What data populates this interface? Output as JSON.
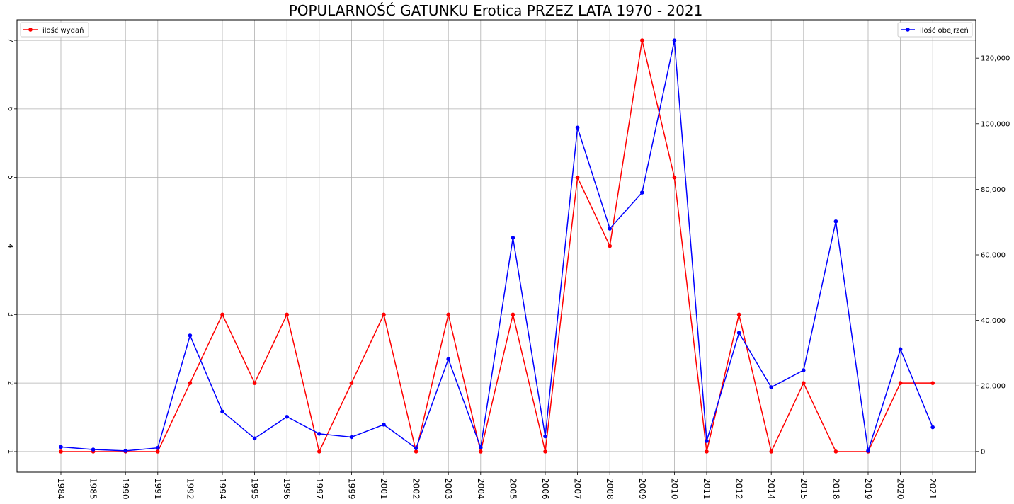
{
  "chart_data": {
    "type": "line",
    "title": "POPULARNOŚĆ GATUNKU Erotica PRZEZ LATA 1970 - 2021",
    "categories": [
      "1984",
      "1985",
      "1990",
      "1991",
      "1992",
      "1994",
      "1995",
      "1996",
      "1997",
      "1999",
      "2001",
      "2002",
      "2003",
      "2004",
      "2005",
      "2006",
      "2007",
      "2008",
      "2009",
      "2010",
      "2011",
      "2012",
      "2014",
      "2015",
      "2018",
      "2019",
      "2020",
      "2021"
    ],
    "grid": true,
    "series": [
      {
        "name": "ilość wydań",
        "axis": "left",
        "color": "#ff0000",
        "values": [
          1,
          1,
          1,
          1,
          2,
          3,
          2,
          3,
          1,
          2,
          3,
          1,
          3,
          1,
          3,
          1,
          5,
          4,
          7,
          5,
          1,
          3,
          1,
          2,
          1,
          1,
          2,
          2
        ]
      },
      {
        "name": "ilość obejrzeń",
        "axis": "right",
        "color": "#0000ff",
        "values": [
          1400,
          600,
          200,
          1100,
          35400,
          12200,
          4000,
          10600,
          5400,
          4400,
          8200,
          1000,
          28200,
          1200,
          65200,
          4600,
          98800,
          68000,
          79000,
          125400,
          3200,
          36200,
          19600,
          24800,
          70200,
          200,
          31200,
          7400
        ]
      }
    ],
    "y_left": {
      "ylim": [
        0.7,
        7.3
      ],
      "ticks": [
        1,
        2,
        3,
        4,
        5,
        6,
        7
      ],
      "tick_labels": [
        "1",
        "2",
        "3",
        "4",
        "5",
        "6",
        "7"
      ]
    },
    "y_right": {
      "ylim": [
        -6300,
        131700
      ],
      "ticks": [
        0,
        20000,
        40000,
        60000,
        80000,
        100000,
        120000
      ],
      "tick_labels": [
        "0",
        "20,000",
        "40,000",
        "60,000",
        "80,000",
        "100,000",
        "120,000"
      ]
    },
    "legends": [
      {
        "label": "ilość wydań",
        "position": "top-left"
      },
      {
        "label": "ilość obejrzeń",
        "position": "top-right"
      }
    ]
  }
}
